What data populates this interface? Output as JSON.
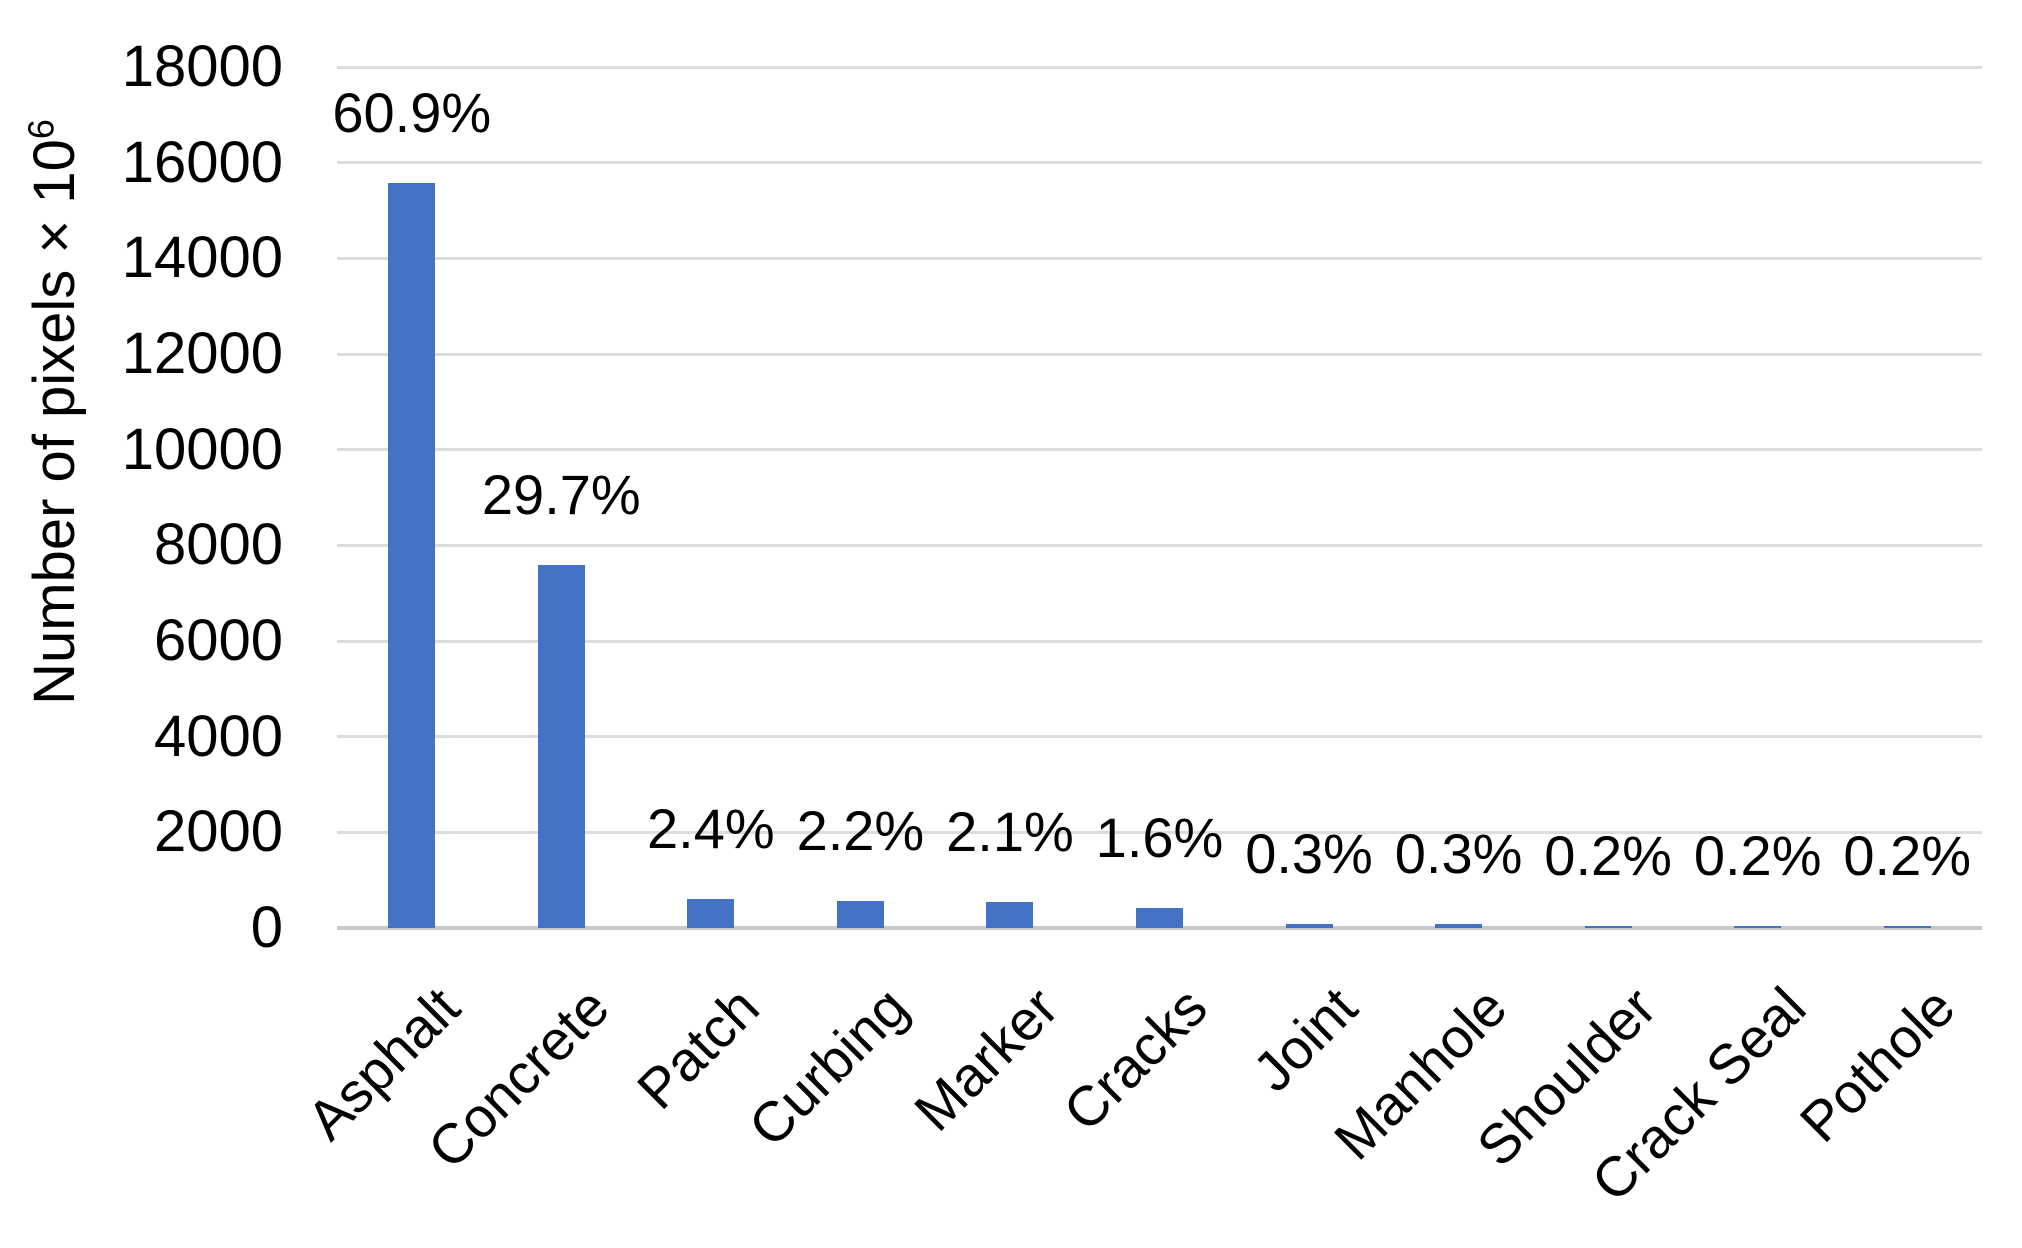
{
  "chart_data": {
    "type": "bar",
    "title": "",
    "categories": [
      "Asphalt",
      "Concrete",
      "Patch",
      "Curbing",
      "Marker",
      "Cracks",
      "Joint",
      "Manhole",
      "Shoulder",
      "Crack Seal",
      "Pothole"
    ],
    "values": [
      15572,
      7594,
      614,
      563,
      537,
      409,
      77,
      77,
      51,
      51,
      51
    ],
    "bar_labels": [
      "60.9%",
      "29.7%",
      "2.4%",
      "2.2%",
      "2.1%",
      "1.6%",
      "0.3%",
      "0.3%",
      "0.2%",
      "0.2%",
      "0.2%"
    ],
    "xlabel": "",
    "ylabel_text": "Number of pixels × 10",
    "ylabel_exponent": "6",
    "ylim": [
      0,
      18000
    ],
    "yticks": [
      0,
      2000,
      4000,
      6000,
      8000,
      10000,
      12000,
      14000,
      16000,
      18000
    ],
    "grid": "horizontal-only",
    "legend": "none",
    "bar_color": "#4472C4",
    "gridline_color": "#DCDCDC",
    "axis_line_color": "#C9C9C9",
    "text_color": "#000000"
  }
}
